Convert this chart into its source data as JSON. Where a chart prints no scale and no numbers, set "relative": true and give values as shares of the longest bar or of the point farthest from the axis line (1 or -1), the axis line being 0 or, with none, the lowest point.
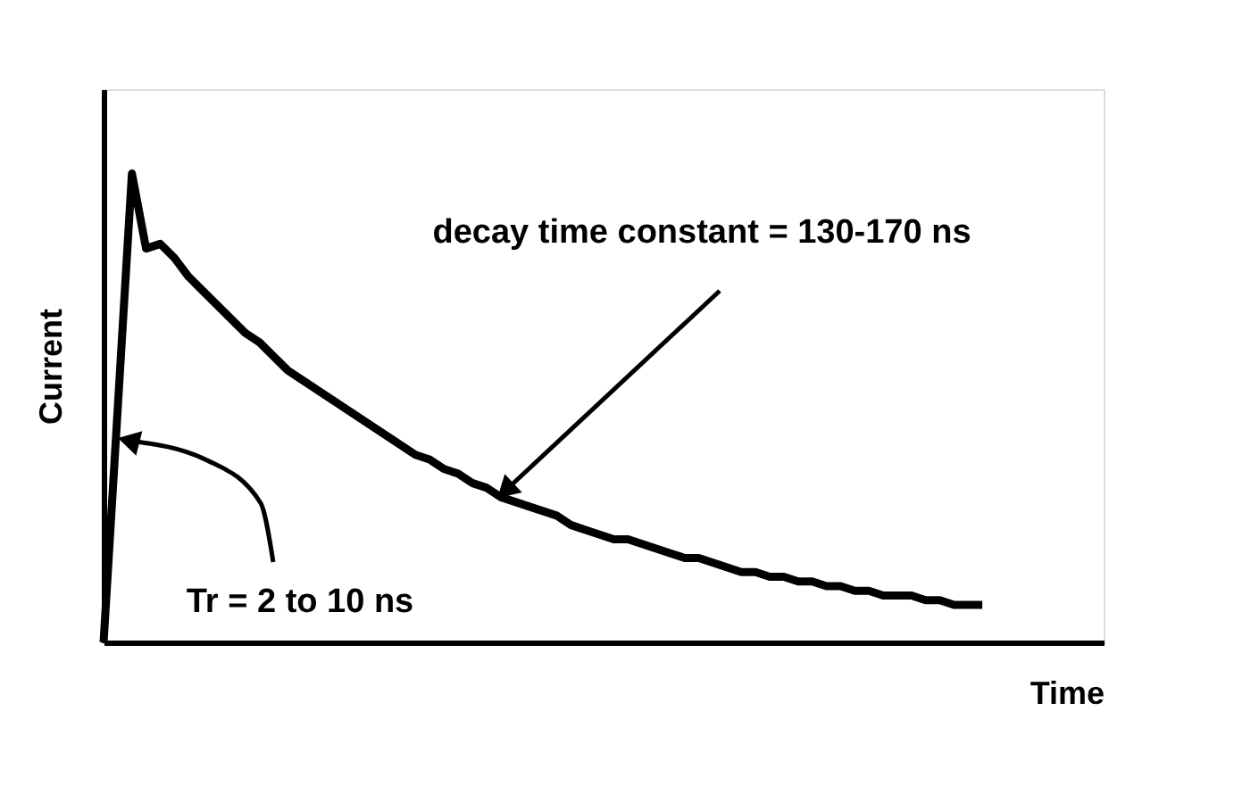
{
  "chart_data": {
    "type": "line",
    "relative": true,
    "xlabel": "Time",
    "ylabel": "Current",
    "tick_labels": false,
    "grid": false,
    "line_style": "solid",
    "annotations": [
      "decay time constant = 130-170 ns",
      "Tr = 2 to 10 ns"
    ],
    "categories": [
      null,
      null,
      null,
      null,
      null,
      null,
      null,
      null,
      null,
      null,
      null,
      null,
      null,
      null,
      null,
      null,
      null,
      null,
      null,
      null,
      null,
      null,
      null,
      null,
      null,
      null,
      null,
      null,
      null,
      null,
      null,
      null,
      null,
      null,
      null,
      null,
      null,
      null,
      null,
      null,
      null,
      null,
      null,
      null,
      null,
      null,
      null,
      null,
      null,
      null,
      null,
      null,
      null,
      null,
      null,
      null,
      null,
      null,
      null,
      null,
      null,
      null,
      null
    ],
    "series": [
      {
        "color": "#000000",
        "values": [
          0,
          0.5,
          1.0,
          0.84,
          0.85,
          0.82,
          0.78,
          0.75,
          0.72,
          0.69,
          0.66,
          0.64,
          0.61,
          0.58,
          0.56,
          0.54,
          0.52,
          0.5,
          0.48,
          0.46,
          0.44,
          0.42,
          0.4,
          0.39,
          0.37,
          0.36,
          0.34,
          0.33,
          0.31,
          0.3,
          0.29,
          0.28,
          0.27,
          0.25,
          0.24,
          0.23,
          0.22,
          0.22,
          0.21,
          0.2,
          0.19,
          0.18,
          0.18,
          0.17,
          0.16,
          0.15,
          0.15,
          0.14,
          0.14,
          0.13,
          0.13,
          0.12,
          0.12,
          0.11,
          0.11,
          0.1,
          0.1,
          0.1,
          0.09,
          0.09,
          0.08,
          0.08,
          0.08
        ]
      }
    ]
  }
}
